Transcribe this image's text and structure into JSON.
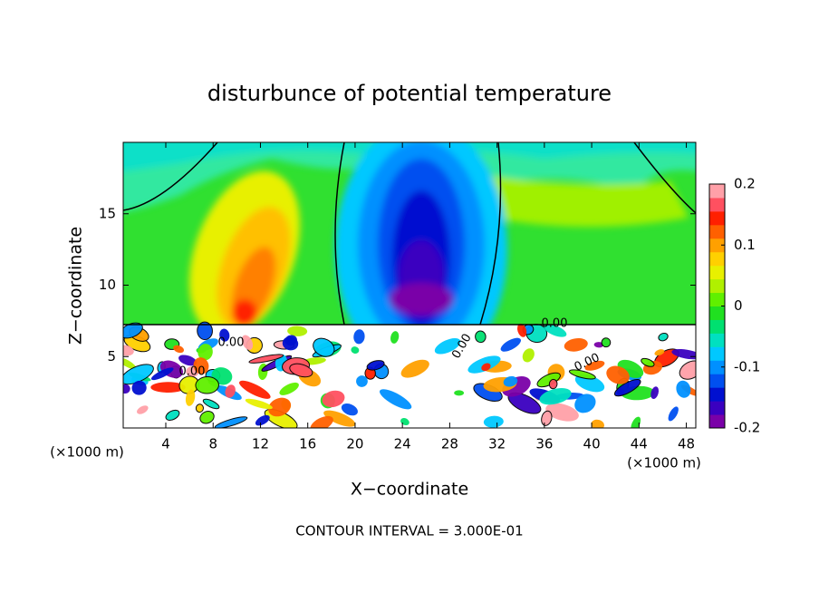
{
  "chart_data": {
    "type": "contour",
    "title": "disturbunce of potential temperature",
    "xlabel": "X−coordinate",
    "ylabel": "Z−coordinate",
    "x_unit_left": "(×1000 m)",
    "x_unit_right": "(×1000 m)",
    "footer": "CONTOUR INTERVAL = 3.000E-01",
    "xlim": [
      0.4,
      48.8
    ],
    "xticks": [
      4,
      8,
      12,
      16,
      20,
      24,
      28,
      32,
      36,
      40,
      44,
      48
    ],
    "ylim": [
      0,
      20
    ],
    "yticks": [
      5,
      10,
      15
    ],
    "colorbar": {
      "lim": [
        -0.2,
        0.2
      ],
      "ticks": [
        0.2,
        0.1,
        0,
        -0.1,
        -0.2
      ],
      "colors": [
        "#7a00a8",
        "#3a00c0",
        "#0010d0",
        "#0050f0",
        "#0090ff",
        "#00c8ff",
        "#00e0c0",
        "#00e070",
        "#20e020",
        "#60f000",
        "#b0f000",
        "#e8f000",
        "#ffd000",
        "#ffa000",
        "#ff6000",
        "#ff2000",
        "#ff5060",
        "#ffa0a8"
      ]
    },
    "contour_labels": [
      "0.00",
      "0.00",
      "0.00",
      "0.00",
      "0.00"
    ]
  }
}
